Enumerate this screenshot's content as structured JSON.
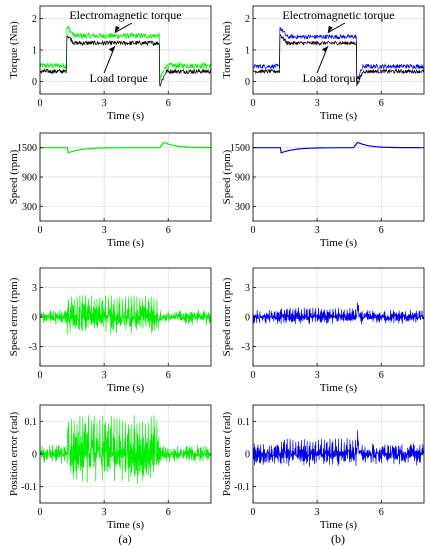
{
  "figure": {
    "caption_a": "(a)",
    "caption_b": "(b)"
  },
  "colors": {
    "green": "#00ee00",
    "blue": "#0000ee",
    "black": "#000000",
    "grid": "#d9d9d9"
  },
  "chart_data": [
    {
      "id": "a1",
      "type": "line",
      "xlabel": "Time (s)",
      "ylabel": "Torque (Nm)",
      "xlim": [
        0,
        8
      ],
      "ylim": [
        -0.4,
        2.4
      ],
      "xticks": [
        0,
        3,
        6
      ],
      "yticks": [
        0,
        1,
        2
      ],
      "grid": true,
      "annotations": [
        "Electromagnetic torque",
        "Load torque"
      ],
      "series": [
        {
          "color": "green",
          "noise": 0.09,
          "base": 0.5,
          "hi": 1.45,
          "tOn": 1.25,
          "tOff": 5.6,
          "hump": 0.3,
          "kind": "torque"
        },
        {
          "color": "black",
          "noise": 0.07,
          "base": 0.32,
          "hi": 1.22,
          "tOn": 1.25,
          "tOff": 5.6,
          "hump": 0.28,
          "kind": "torque"
        }
      ]
    },
    {
      "id": "b1",
      "type": "line",
      "xlabel": "Time (s)",
      "ylabel": "Torque (Nm)",
      "xlim": [
        0,
        8
      ],
      "ylim": [
        -0.4,
        2.4
      ],
      "xticks": [
        0,
        3,
        6
      ],
      "yticks": [
        0,
        1,
        2
      ],
      "grid": true,
      "annotations": [
        "Electromagnetic torque",
        "Load torque"
      ],
      "series": [
        {
          "color": "blue",
          "noise": 0.07,
          "base": 0.48,
          "hi": 1.42,
          "tOn": 1.25,
          "tOff": 4.85,
          "hump": 0.3,
          "kind": "torque"
        },
        {
          "color": "black",
          "noise": 0.06,
          "base": 0.32,
          "hi": 1.22,
          "tOn": 1.25,
          "tOff": 4.85,
          "hump": 0.28,
          "kind": "torque"
        }
      ]
    },
    {
      "id": "a2",
      "type": "line",
      "xlabel": "Time (s)",
      "ylabel": "Speed (rpm)",
      "xlim": [
        0,
        8
      ],
      "ylim": [
        0,
        1800
      ],
      "xticks": [
        0,
        3,
        6
      ],
      "yticks": [
        300,
        900,
        1500
      ],
      "grid": true,
      "series": [
        {
          "color": "green",
          "base": 1500,
          "dip": -110,
          "tDip": 1.3,
          "bump": 110,
          "tBump": 5.8,
          "kind": "speed"
        }
      ]
    },
    {
      "id": "b2",
      "type": "line",
      "xlabel": "Time (s)",
      "ylabel": "Speed (rpm)",
      "xlim": [
        0,
        8
      ],
      "ylim": [
        0,
        1800
      ],
      "xticks": [
        0,
        3,
        6
      ],
      "yticks": [
        300,
        900,
        1500
      ],
      "grid": true,
      "series": [
        {
          "color": "blue",
          "base": 1500,
          "dip": -110,
          "tDip": 1.3,
          "bump": 110,
          "tBump": 4.9,
          "kind": "speed"
        }
      ]
    },
    {
      "id": "a3",
      "type": "line",
      "xlabel": "Time (s)",
      "ylabel": "Speed error (rpm)",
      "xlim": [
        0,
        8
      ],
      "ylim": [
        -5,
        5
      ],
      "xticks": [
        0,
        3,
        6
      ],
      "yticks": [
        -3,
        0,
        3
      ],
      "grid": true,
      "series": [
        {
          "color": "green",
          "noise": 0.8,
          "loadNoise": 1.9,
          "tOn": 1.25,
          "tOff": 5.6,
          "kind": "error"
        }
      ]
    },
    {
      "id": "b3",
      "type": "line",
      "xlabel": "Time (s)",
      "ylabel": "Speed error (rpm)",
      "xlim": [
        0,
        8
      ],
      "ylim": [
        -5,
        5
      ],
      "xticks": [
        0,
        3,
        6
      ],
      "yticks": [
        -3,
        0,
        3
      ],
      "grid": true,
      "series": [
        {
          "color": "blue",
          "noise": 0.75,
          "loadNoise": 0.8,
          "tOn": 1.25,
          "tOff": 4.85,
          "spike": 1.2,
          "tSpike": 4.9,
          "kind": "error"
        }
      ]
    },
    {
      "id": "a4",
      "type": "line",
      "xlabel": "Time (s)",
      "ylabel": "Position error (rad)",
      "xlim": [
        0,
        8
      ],
      "ylim": [
        -0.15,
        0.15
      ],
      "xticks": [
        0,
        3,
        6
      ],
      "yticks": [
        -0.1,
        0,
        0.1
      ],
      "grid": true,
      "series": [
        {
          "color": "green",
          "noise": 0.03,
          "loadNoise": 0.1,
          "tOn": 1.25,
          "tOff": 5.6,
          "kind": "error"
        }
      ]
    },
    {
      "id": "b4",
      "type": "line",
      "xlabel": "Time (s)",
      "ylabel": "Position error (rad)",
      "xlim": [
        0,
        8
      ],
      "ylim": [
        -0.15,
        0.15
      ],
      "xticks": [
        0,
        3,
        6
      ],
      "yticks": [
        -0.1,
        0,
        0.1
      ],
      "grid": true,
      "series": [
        {
          "color": "blue",
          "noise": 0.035,
          "loadNoise": 0.04,
          "tOn": 1.25,
          "tOff": 4.85,
          "spike": 0.06,
          "tSpike": 4.9,
          "kind": "error"
        }
      ]
    }
  ]
}
